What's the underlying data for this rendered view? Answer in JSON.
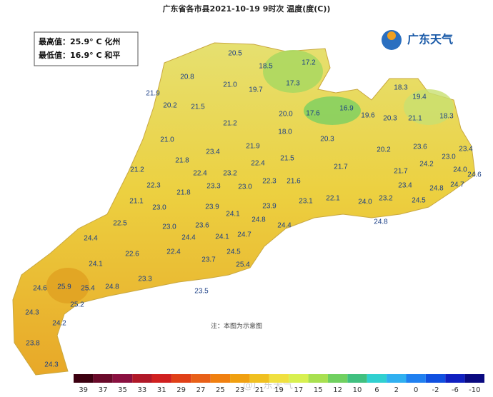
{
  "title": "广东省各市县2021-10-19  9时次 温度(度(C))",
  "summary": {
    "max": "最高值：25.9° C 化州",
    "min": "最低值：16.9° C 和平"
  },
  "logo": "广东天气",
  "note": "注：本图为示意图",
  "watermark": "@广东天气",
  "stations": [
    "20.5",
    "18.5",
    "17.2",
    "20.8",
    "21.0",
    "19.7",
    "17.3",
    "18.3",
    "21.9",
    "19.4",
    "20.2",
    "21.5",
    "20.0",
    "17.6",
    "16.9",
    "19.6",
    "20.3",
    "21.1",
    "18.3",
    "21.2",
    "18.0",
    "21.0",
    "20.3",
    "21.9",
    "23.6",
    "20.2",
    "23.4",
    "23.4",
    "21.8",
    "21.5",
    "23.0",
    "22.4",
    "24.2",
    "21.7",
    "21.2",
    "24.0",
    "24.6",
    "22.4",
    "23.2",
    "21.7",
    "22.3",
    "21.6",
    "22.3",
    "23.3",
    "23.0",
    "23.4",
    "24.7",
    "24.8",
    "21.8",
    "22.1",
    "23.1",
    "21.1",
    "24.0",
    "23.2",
    "24.5",
    "23.0",
    "23.9",
    "23.9",
    "24.1",
    "24.8",
    "24.4",
    "24.8",
    "22.5",
    "23.0",
    "23.6",
    "24.1",
    "24.7",
    "24.4",
    "24.4",
    "22.6",
    "22.4",
    "24.5",
    "23.7",
    "25.4",
    "24.1",
    "23.3",
    "25.9",
    "24.6",
    "25.4",
    "24.8",
    "23.5",
    "25.2",
    "24.3",
    "24.2",
    "23.8",
    "24.3"
  ],
  "legend": {
    "ticks": [
      39,
      37,
      35,
      33,
      31,
      29,
      27,
      25,
      23,
      21,
      19,
      17,
      15,
      12,
      10,
      6,
      2,
      0,
      -2,
      -6,
      -10
    ],
    "colors": [
      "#3c0010",
      "#6a0a2a",
      "#8a1040",
      "#b01828",
      "#d02020",
      "#e04018",
      "#e86018",
      "#f08010",
      "#f0a010",
      "#f0c020",
      "#f0e040",
      "#d8f050",
      "#a8e050",
      "#70d060",
      "#40c080",
      "#30d0d0",
      "#30b0f0",
      "#2080f0",
      "#1050e0",
      "#1020c0",
      "#0a0a80"
    ]
  }
}
